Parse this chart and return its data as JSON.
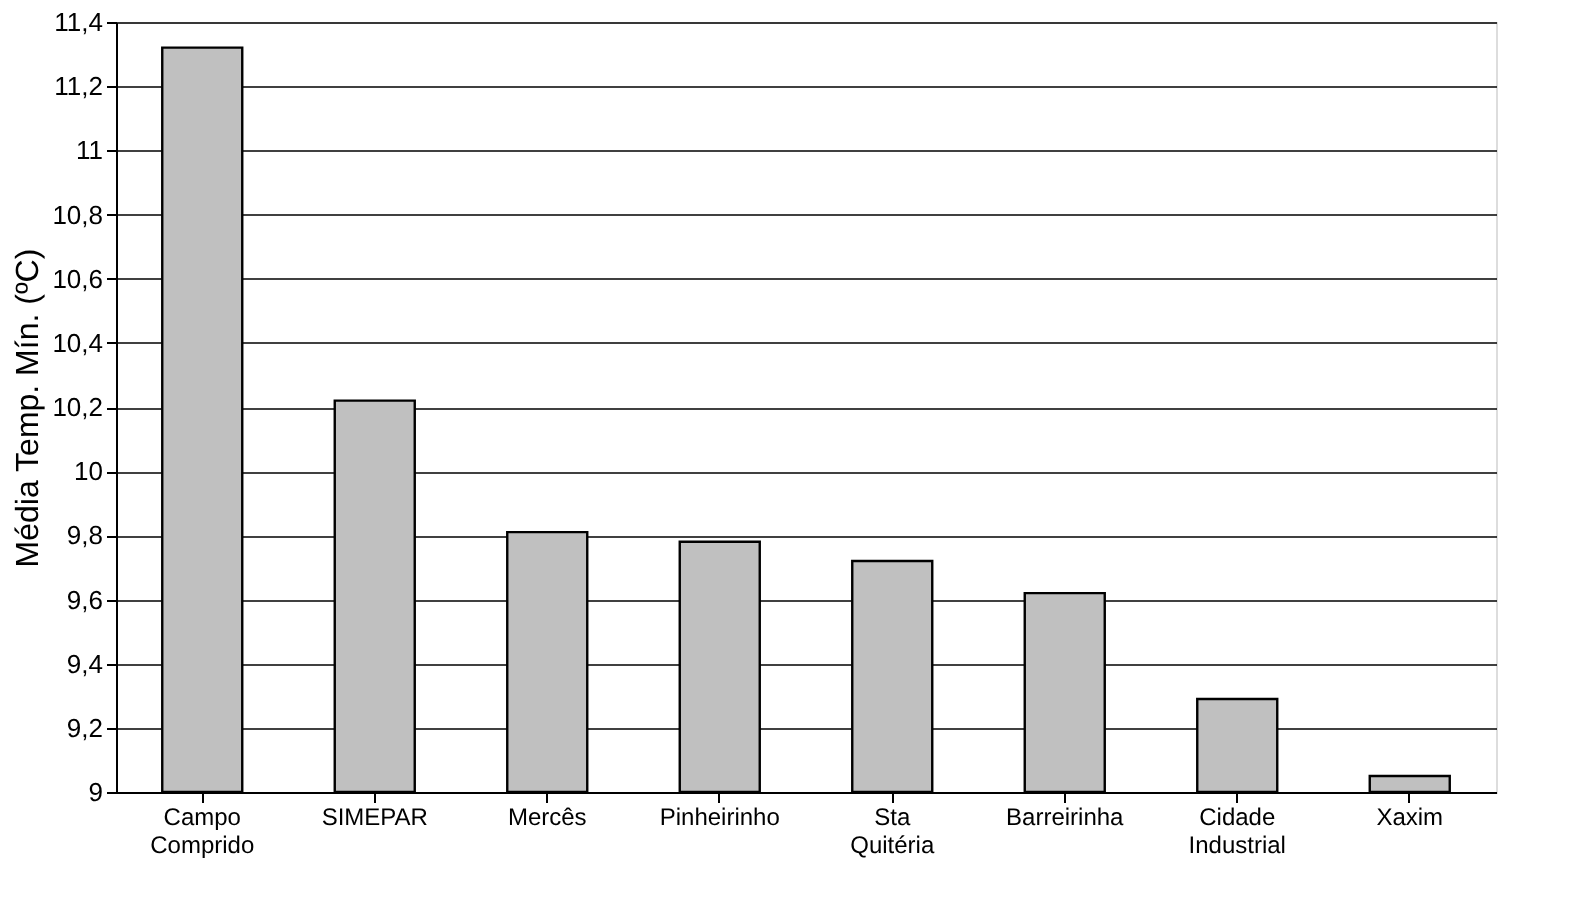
{
  "chart_data": {
    "type": "bar",
    "ylabel": "Média Temp. Mín. (ºC)",
    "categories": [
      "Campo Comprido",
      "SIMEPAR",
      "Mercês",
      "Pinheirinho",
      "Sta Quitéria",
      "Barreirinha",
      "Cidade Industrial",
      "Xaxim"
    ],
    "values": [
      11.32,
      10.22,
      9.81,
      9.78,
      9.72,
      9.62,
      9.29,
      9.05
    ],
    "color": "#c0c0c0",
    "ylim": [
      9,
      11.4
    ],
    "yticks": [
      {
        "value": 9,
        "label": "9"
      },
      {
        "value": 9.2,
        "label": "9,2"
      },
      {
        "value": 9.4,
        "label": "9,4"
      },
      {
        "value": 9.6,
        "label": "9,6"
      },
      {
        "value": 9.8,
        "label": "9,8"
      },
      {
        "value": 10,
        "label": "10"
      },
      {
        "value": 10.2,
        "label": "10,2"
      },
      {
        "value": 10.4,
        "label": "10,4"
      },
      {
        "value": 10.6,
        "label": "10,6"
      },
      {
        "value": 10.8,
        "label": "10,8"
      },
      {
        "value": 11,
        "label": "11"
      },
      {
        "value": 11.2,
        "label": "11,2"
      },
      {
        "value": 11.4,
        "label": "11,4"
      }
    ],
    "grid": "y"
  }
}
